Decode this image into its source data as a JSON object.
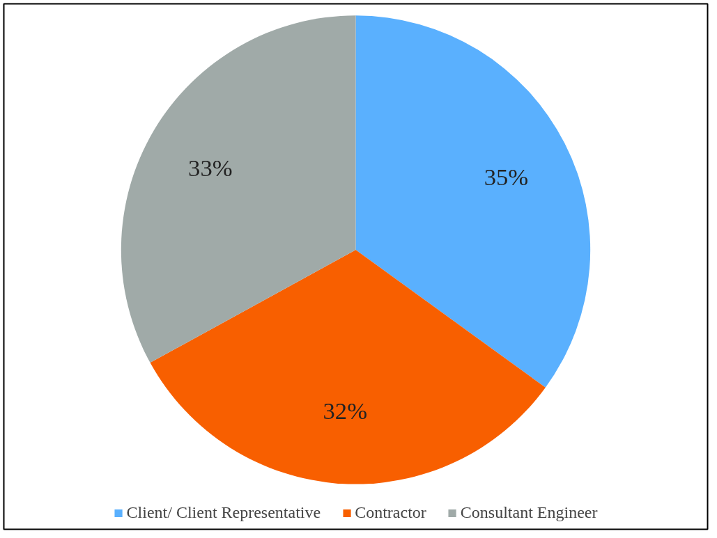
{
  "chart_data": {
    "type": "pie",
    "categories": [
      "Client/ Client Representative",
      "Contractor",
      "Consultant Engineer"
    ],
    "values": [
      35,
      32,
      33
    ],
    "colors": [
      "#5ab0fe",
      "#f85f00",
      "#a0aaa8"
    ],
    "value_labels": [
      "35%",
      "32%",
      "33%"
    ],
    "legend": "bottom"
  }
}
